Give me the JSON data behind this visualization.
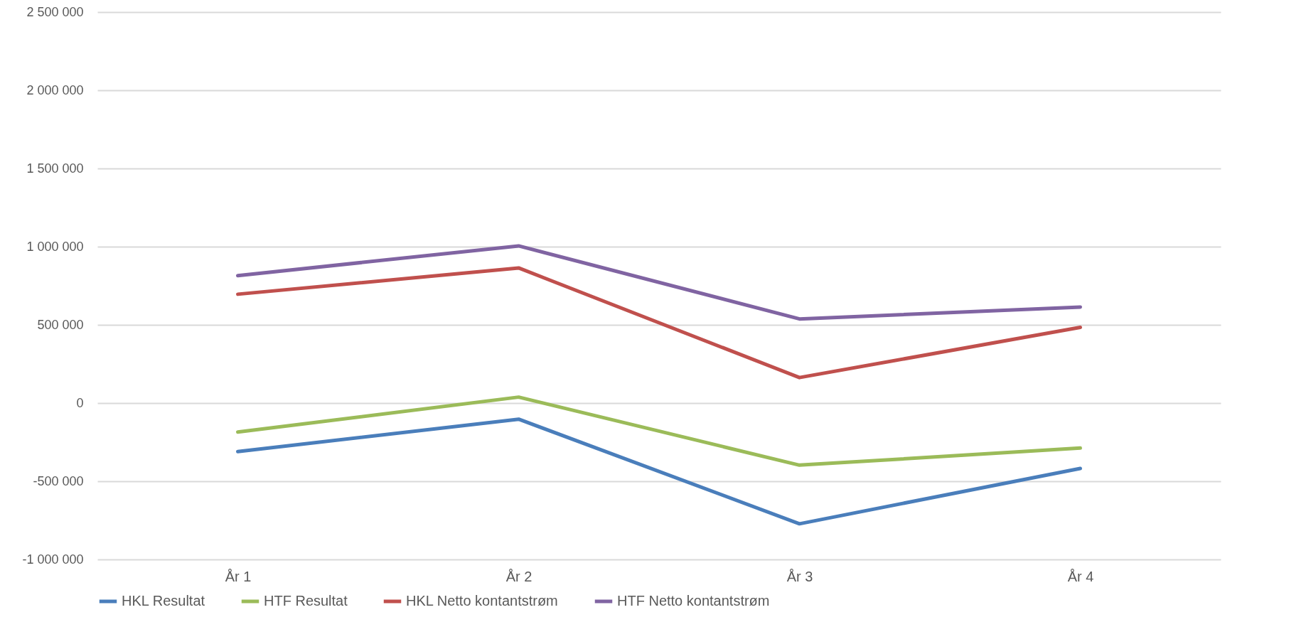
{
  "chart_data": {
    "type": "line",
    "categories": [
      "År 1",
      "År 2",
      "År 3",
      "År 4"
    ],
    "series": [
      {
        "name": "HKL Resultat",
        "color": "#4a7ebb",
        "values": [
          -310000,
          -103000,
          -772000,
          -418000
        ]
      },
      {
        "name": "HTF Resultat",
        "color": "#9bbb59",
        "values": [
          -185000,
          38000,
          -397000,
          -288000
        ]
      },
      {
        "name": "HKL Netto kontantstrøm",
        "color": "#c0504d",
        "values": [
          696000,
          864000,
          163000,
          484000
        ]
      },
      {
        "name": "HTF Netto kontantstrøm",
        "color": "#8064a2",
        "values": [
          815000,
          1005000,
          538000,
          614000
        ]
      }
    ],
    "ylim": [
      -1000000,
      2500000
    ],
    "yticks": [
      {
        "value": -1000000,
        "label": "-1 000 000"
      },
      {
        "value": -500000,
        "label": "-500 000"
      },
      {
        "value": 0,
        "label": "0"
      },
      {
        "value": 500000,
        "label": "500 000"
      },
      {
        "value": 1000000,
        "label": "1 000 000"
      },
      {
        "value": 1500000,
        "label": "1 500 000"
      },
      {
        "value": 2000000,
        "label": "2 000 000"
      },
      {
        "value": 2500000,
        "label": "2 500 000"
      }
    ],
    "grid": "y",
    "legend": "bottom",
    "marker": "none",
    "line_style": "solid"
  }
}
